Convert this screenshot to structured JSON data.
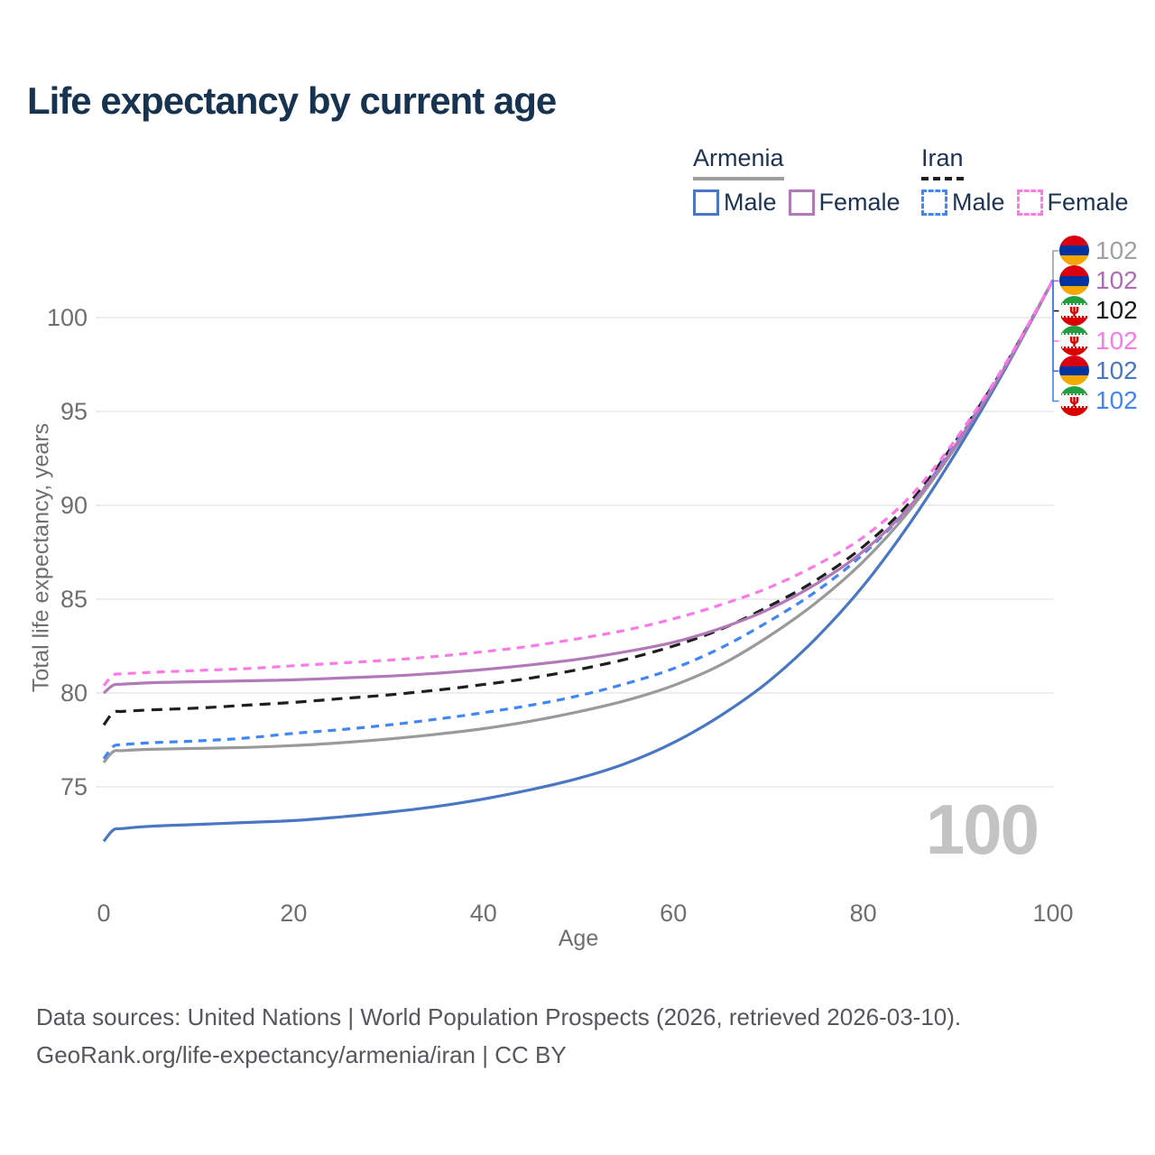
{
  "title": "Life expectancy by current age",
  "colors": {
    "title_navy": "#17334f",
    "tick_gray": "#6f6f6f",
    "grid": "#ececec",
    "footer_gray": "#54585c",
    "watermark_gray": "#c3c3c3"
  },
  "icons": {
    "iran_emblem": "ψ"
  },
  "legend": {
    "groups": [
      {
        "label": "Armenia",
        "underline_color": "#9e9e9e",
        "underline_style": "solid",
        "items": [
          {
            "label": "Male",
            "color": "#4a77c4",
            "style": "solid"
          },
          {
            "label": "Female",
            "color": "#b279b8",
            "style": "solid"
          }
        ]
      },
      {
        "label": "Iran",
        "underline_color": "#1f1f1f",
        "underline_style": "dashed",
        "items": [
          {
            "label": "Male",
            "color": "#4285f4",
            "style": "dashed"
          },
          {
            "label": "Female",
            "color": "#fb7ae8",
            "style": "dashed"
          }
        ]
      }
    ]
  },
  "end_labels": [
    {
      "flag": "armenia",
      "value": "102",
      "color": "#a0a0a0"
    },
    {
      "flag": "armenia",
      "value": "102",
      "color": "#b06ab8"
    },
    {
      "flag": "iran",
      "value": "102",
      "color": "#1a1a1a"
    },
    {
      "flag": "iran",
      "value": "102",
      "color": "#fb7ae8"
    },
    {
      "flag": "armenia",
      "value": "102",
      "color": "#4a77c4"
    },
    {
      "flag": "iran",
      "value": "102",
      "color": "#4285f4"
    }
  ],
  "watermark": {
    "text": "100"
  },
  "chart_data": {
    "type": "line",
    "title": "Life expectancy by current age",
    "xlabel": "Age",
    "ylabel": "Total life expectancy, years",
    "xlim": [
      0,
      100
    ],
    "ylim": [
      71.5,
      102.5
    ],
    "xticks": [
      0,
      20,
      40,
      60,
      80,
      100
    ],
    "yticks": [
      75,
      80,
      85,
      90,
      95,
      100
    ],
    "grid": "horizontal",
    "legend_position": "top-right",
    "x": [
      0,
      1,
      2,
      5,
      10,
      15,
      20,
      25,
      30,
      35,
      40,
      45,
      50,
      55,
      60,
      65,
      70,
      75,
      80,
      85,
      90,
      95,
      100
    ],
    "series": [
      {
        "id": "armenia-both",
        "name": "Armenia Both sexes",
        "country": "Armenia",
        "sex": "both",
        "color": "#9a9a9a",
        "dash": "solid",
        "values": [
          76.3,
          76.88,
          76.93,
          77.0,
          77.05,
          77.1,
          77.2,
          77.35,
          77.55,
          77.8,
          78.1,
          78.5,
          79.0,
          79.6,
          80.4,
          81.5,
          83.0,
          84.8,
          87.0,
          89.8,
          93.3,
          97.35,
          102
        ]
      },
      {
        "id": "iran-both",
        "name": "Iran Both sexes",
        "country": "Iran",
        "sex": "both",
        "color": "#1f1f1f",
        "dash": "dashed",
        "dasharray": "12 8",
        "values": [
          78.3,
          78.95,
          79.02,
          79.1,
          79.2,
          79.35,
          79.5,
          79.7,
          79.9,
          80.15,
          80.45,
          80.8,
          81.25,
          81.8,
          82.5,
          83.4,
          84.6,
          86.0,
          87.8,
          90.2,
          93.6,
          97.5,
          102
        ]
      },
      {
        "id": "iran-male",
        "name": "Iran Male",
        "country": "Iran",
        "sex": "male",
        "color": "#4285f4",
        "dash": "dashed",
        "dasharray": "9 7",
        "values": [
          76.5,
          77.15,
          77.25,
          77.35,
          77.45,
          77.6,
          77.85,
          78.05,
          78.3,
          78.6,
          78.95,
          79.35,
          79.85,
          80.5,
          81.3,
          82.4,
          83.8,
          85.4,
          87.4,
          90.0,
          93.5,
          97.45,
          102
        ]
      },
      {
        "id": "armenia-male",
        "name": "Armenia Male",
        "country": "Armenia",
        "sex": "male",
        "color": "#4a77c4",
        "dash": "solid",
        "values": [
          72.1,
          72.7,
          72.78,
          72.9,
          73.0,
          73.1,
          73.2,
          73.4,
          73.65,
          73.95,
          74.35,
          74.85,
          75.45,
          76.25,
          77.35,
          78.8,
          80.6,
          82.9,
          85.7,
          89.1,
          93.0,
          97.3,
          102
        ]
      },
      {
        "id": "armenia-female",
        "name": "Armenia Female",
        "country": "Armenia",
        "sex": "female",
        "color": "#b279b8",
        "dash": "solid",
        "values": [
          80.0,
          80.42,
          80.47,
          80.55,
          80.6,
          80.65,
          80.7,
          80.8,
          80.9,
          81.05,
          81.25,
          81.5,
          81.8,
          82.2,
          82.7,
          83.45,
          84.45,
          85.8,
          87.55,
          90.0,
          93.4,
          97.4,
          102
        ]
      },
      {
        "id": "iran-female",
        "name": "Iran Female",
        "country": "Iran",
        "sex": "female",
        "color": "#fb7ae8",
        "dash": "dashed",
        "dasharray": "9 7",
        "values": [
          80.4,
          80.95,
          81.02,
          81.1,
          81.2,
          81.3,
          81.45,
          81.6,
          81.75,
          81.95,
          82.2,
          82.5,
          82.9,
          83.35,
          83.95,
          84.7,
          85.6,
          86.8,
          88.3,
          90.5,
          93.7,
          97.55,
          102
        ]
      }
    ]
  },
  "footer": {
    "line1": "Data sources: United Nations | World Population Prospects (2026, retrieved 2026-03-10).",
    "line2": "GeoRank.org/life-expectancy/armenia/iran | CC BY"
  }
}
